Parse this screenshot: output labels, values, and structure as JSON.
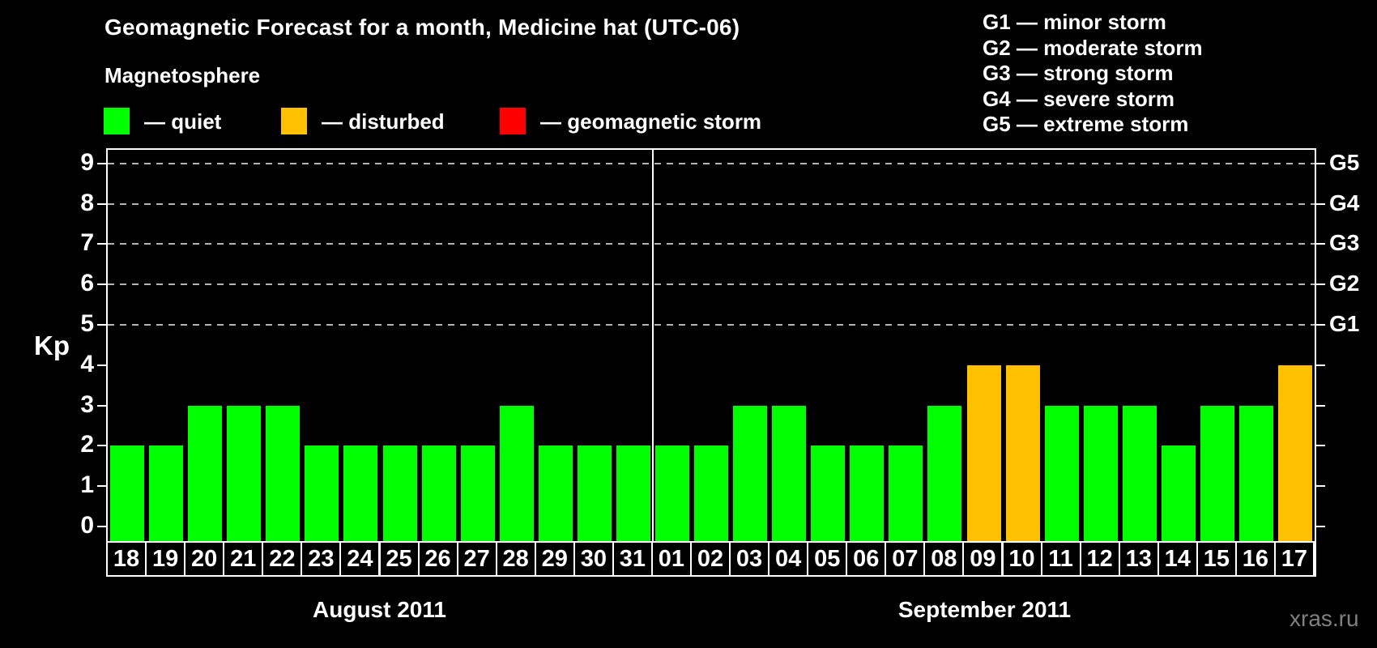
{
  "header": {
    "title": "Geomagnetic Forecast for a month, Medicine hat (UTC-06)"
  },
  "legend": {
    "heading": "Magnetosphere",
    "items": [
      {
        "name": "quiet",
        "label": "— quiet",
        "color": "#00ff00"
      },
      {
        "name": "disturbed",
        "label": "— disturbed",
        "color": "#ffc000"
      },
      {
        "name": "storm",
        "label": "— geomagnetic storm",
        "color": "#ff0000"
      }
    ]
  },
  "g_legend": [
    "G1 — minor storm",
    "G2 — moderate storm",
    "G3 — strong storm",
    "G4 — severe storm",
    "G5 — extreme storm"
  ],
  "chart_data": {
    "type": "bar",
    "title": "Geomagnetic Forecast for a month, Medicine hat (UTC-06)",
    "ylabel": "Kp",
    "ylim": [
      0,
      9
    ],
    "y_ticks": [
      0,
      1,
      2,
      3,
      4,
      5,
      6,
      7,
      8,
      9
    ],
    "grid_levels": [
      5,
      6,
      7,
      8,
      9
    ],
    "g_ticks": [
      {
        "label": "G1",
        "kp": 5
      },
      {
        "label": "G2",
        "kp": 6
      },
      {
        "label": "G3",
        "kp": 7
      },
      {
        "label": "G4",
        "kp": 8
      },
      {
        "label": "G5",
        "kp": 9
      }
    ],
    "status_colors": {
      "quiet": "#00ff00",
      "disturbed": "#ffc000",
      "storm": "#ff0000"
    },
    "months": [
      {
        "label": "August 2011",
        "days": [
          {
            "day": "18",
            "kp": 2,
            "status": "quiet"
          },
          {
            "day": "19",
            "kp": 2,
            "status": "quiet"
          },
          {
            "day": "20",
            "kp": 3,
            "status": "quiet"
          },
          {
            "day": "21",
            "kp": 3,
            "status": "quiet"
          },
          {
            "day": "22",
            "kp": 3,
            "status": "quiet"
          },
          {
            "day": "23",
            "kp": 2,
            "status": "quiet"
          },
          {
            "day": "24",
            "kp": 2,
            "status": "quiet"
          },
          {
            "day": "25",
            "kp": 2,
            "status": "quiet"
          },
          {
            "day": "26",
            "kp": 2,
            "status": "quiet"
          },
          {
            "day": "27",
            "kp": 2,
            "status": "quiet"
          },
          {
            "day": "28",
            "kp": 3,
            "status": "quiet"
          },
          {
            "day": "29",
            "kp": 2,
            "status": "quiet"
          },
          {
            "day": "30",
            "kp": 2,
            "status": "quiet"
          },
          {
            "day": "31",
            "kp": 2,
            "status": "quiet"
          }
        ]
      },
      {
        "label": "September 2011",
        "days": [
          {
            "day": "01",
            "kp": 2,
            "status": "quiet"
          },
          {
            "day": "02",
            "kp": 2,
            "status": "quiet"
          },
          {
            "day": "03",
            "kp": 3,
            "status": "quiet"
          },
          {
            "day": "04",
            "kp": 3,
            "status": "quiet"
          },
          {
            "day": "05",
            "kp": 2,
            "status": "quiet"
          },
          {
            "day": "06",
            "kp": 2,
            "status": "quiet"
          },
          {
            "day": "07",
            "kp": 2,
            "status": "quiet"
          },
          {
            "day": "08",
            "kp": 3,
            "status": "quiet"
          },
          {
            "day": "09",
            "kp": 4,
            "status": "disturbed"
          },
          {
            "day": "10",
            "kp": 4,
            "status": "disturbed"
          },
          {
            "day": "11",
            "kp": 3,
            "status": "quiet"
          },
          {
            "day": "12",
            "kp": 3,
            "status": "quiet"
          },
          {
            "day": "13",
            "kp": 3,
            "status": "quiet"
          },
          {
            "day": "14",
            "kp": 2,
            "status": "quiet"
          },
          {
            "day": "15",
            "kp": 3,
            "status": "quiet"
          },
          {
            "day": "16",
            "kp": 3,
            "status": "quiet"
          },
          {
            "day": "17",
            "kp": 4,
            "status": "disturbed"
          }
        ]
      }
    ]
  },
  "footer": {
    "watermark": "xras.ru"
  }
}
